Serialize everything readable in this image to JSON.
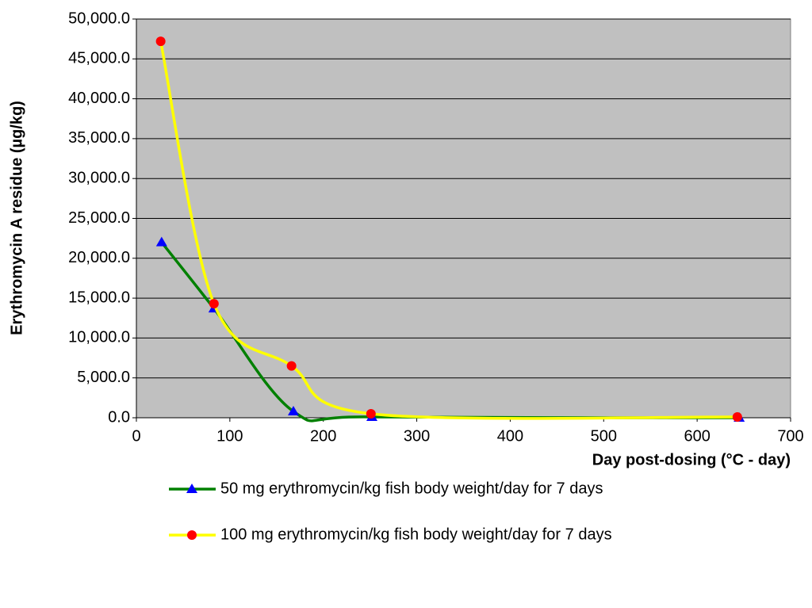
{
  "chart_data": {
    "type": "line",
    "xlabel": "Day post-dosing (°C - day)",
    "ylabel": "Erythromycin A residue (µg/kg)",
    "xlim": [
      0,
      700
    ],
    "xticks": [
      0,
      100,
      200,
      300,
      400,
      500,
      600,
      700
    ],
    "ylim": [
      0,
      50000
    ],
    "yticks": [
      {
        "value": 0,
        "label": "0.0"
      },
      {
        "value": 5000,
        "label": "5,000.0"
      },
      {
        "value": 10000,
        "label": "10,000.0"
      },
      {
        "value": 15000,
        "label": "15,000.0"
      },
      {
        "value": 20000,
        "label": "20,000.0"
      },
      {
        "value": 25000,
        "label": "25,000.0"
      },
      {
        "value": 30000,
        "label": "30,000.0"
      },
      {
        "value": 35000,
        "label": "35,000.0"
      },
      {
        "value": 40000,
        "label": "40,000.0"
      },
      {
        "value": 45000,
        "label": "45,000.0"
      },
      {
        "value": 50000,
        "label": "50,000.0"
      }
    ],
    "grid": true,
    "series": [
      {
        "name": "50 mg erythromycin/kg fish body weight/day for 7 days",
        "color": "#008000",
        "marker_color": "#0000ff",
        "marker": "triangle",
        "x": [
          27,
          83,
          168,
          252,
          645
        ],
        "values": [
          22000,
          13700,
          800,
          100,
          0
        ]
      },
      {
        "name": "100 mg erythromycin/kg fish body weight/day for 7 days",
        "color": "#ffff00",
        "marker_color": "#ff0000",
        "marker": "circle",
        "x": [
          26,
          83,
          166,
          251,
          643
        ],
        "values": [
          47200,
          14300,
          6500,
          500,
          100
        ]
      }
    ]
  }
}
